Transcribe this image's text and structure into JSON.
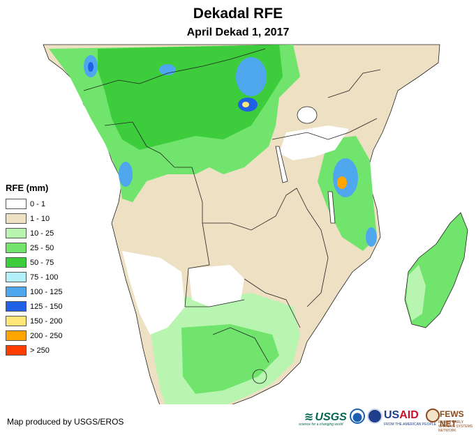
{
  "title": "Dekadal RFE",
  "subtitle": "April Dekad 1, 2017",
  "legend": {
    "title": "RFE (mm)",
    "items": [
      {
        "label": "0 - 1",
        "color": "#ffffff"
      },
      {
        "label": "1 - 10",
        "color": "#ede0c3"
      },
      {
        "label": "10 - 25",
        "color": "#b8f5b0"
      },
      {
        "label": "25 - 50",
        "color": "#70e46c"
      },
      {
        "label": "50 - 75",
        "color": "#3ccc3c"
      },
      {
        "label": "75 - 100",
        "color": "#b2f0fa"
      },
      {
        "label": "100 - 125",
        "color": "#4fa8ee"
      },
      {
        "label": "125 - 150",
        "color": "#2060e6"
      },
      {
        "label": "150 - 200",
        "color": "#ffe678"
      },
      {
        "label": "200 - 250",
        "color": "#ffa500"
      },
      {
        "label": "> 250",
        "color": "#ff3c00"
      }
    ]
  },
  "credit": "Map produced by USGS/EROS",
  "logos": {
    "usgs": "USGS",
    "usgs_tagline": "science for a changing world",
    "usaid_a": "US",
    "usaid_b": "AID",
    "usaid_tagline": "FROM THE AMERICAN PEOPLE",
    "fews": "FEWS NET",
    "fews_tagline": "FAMINE EARLY WARNING SYSTEMS NETWORK"
  }
}
